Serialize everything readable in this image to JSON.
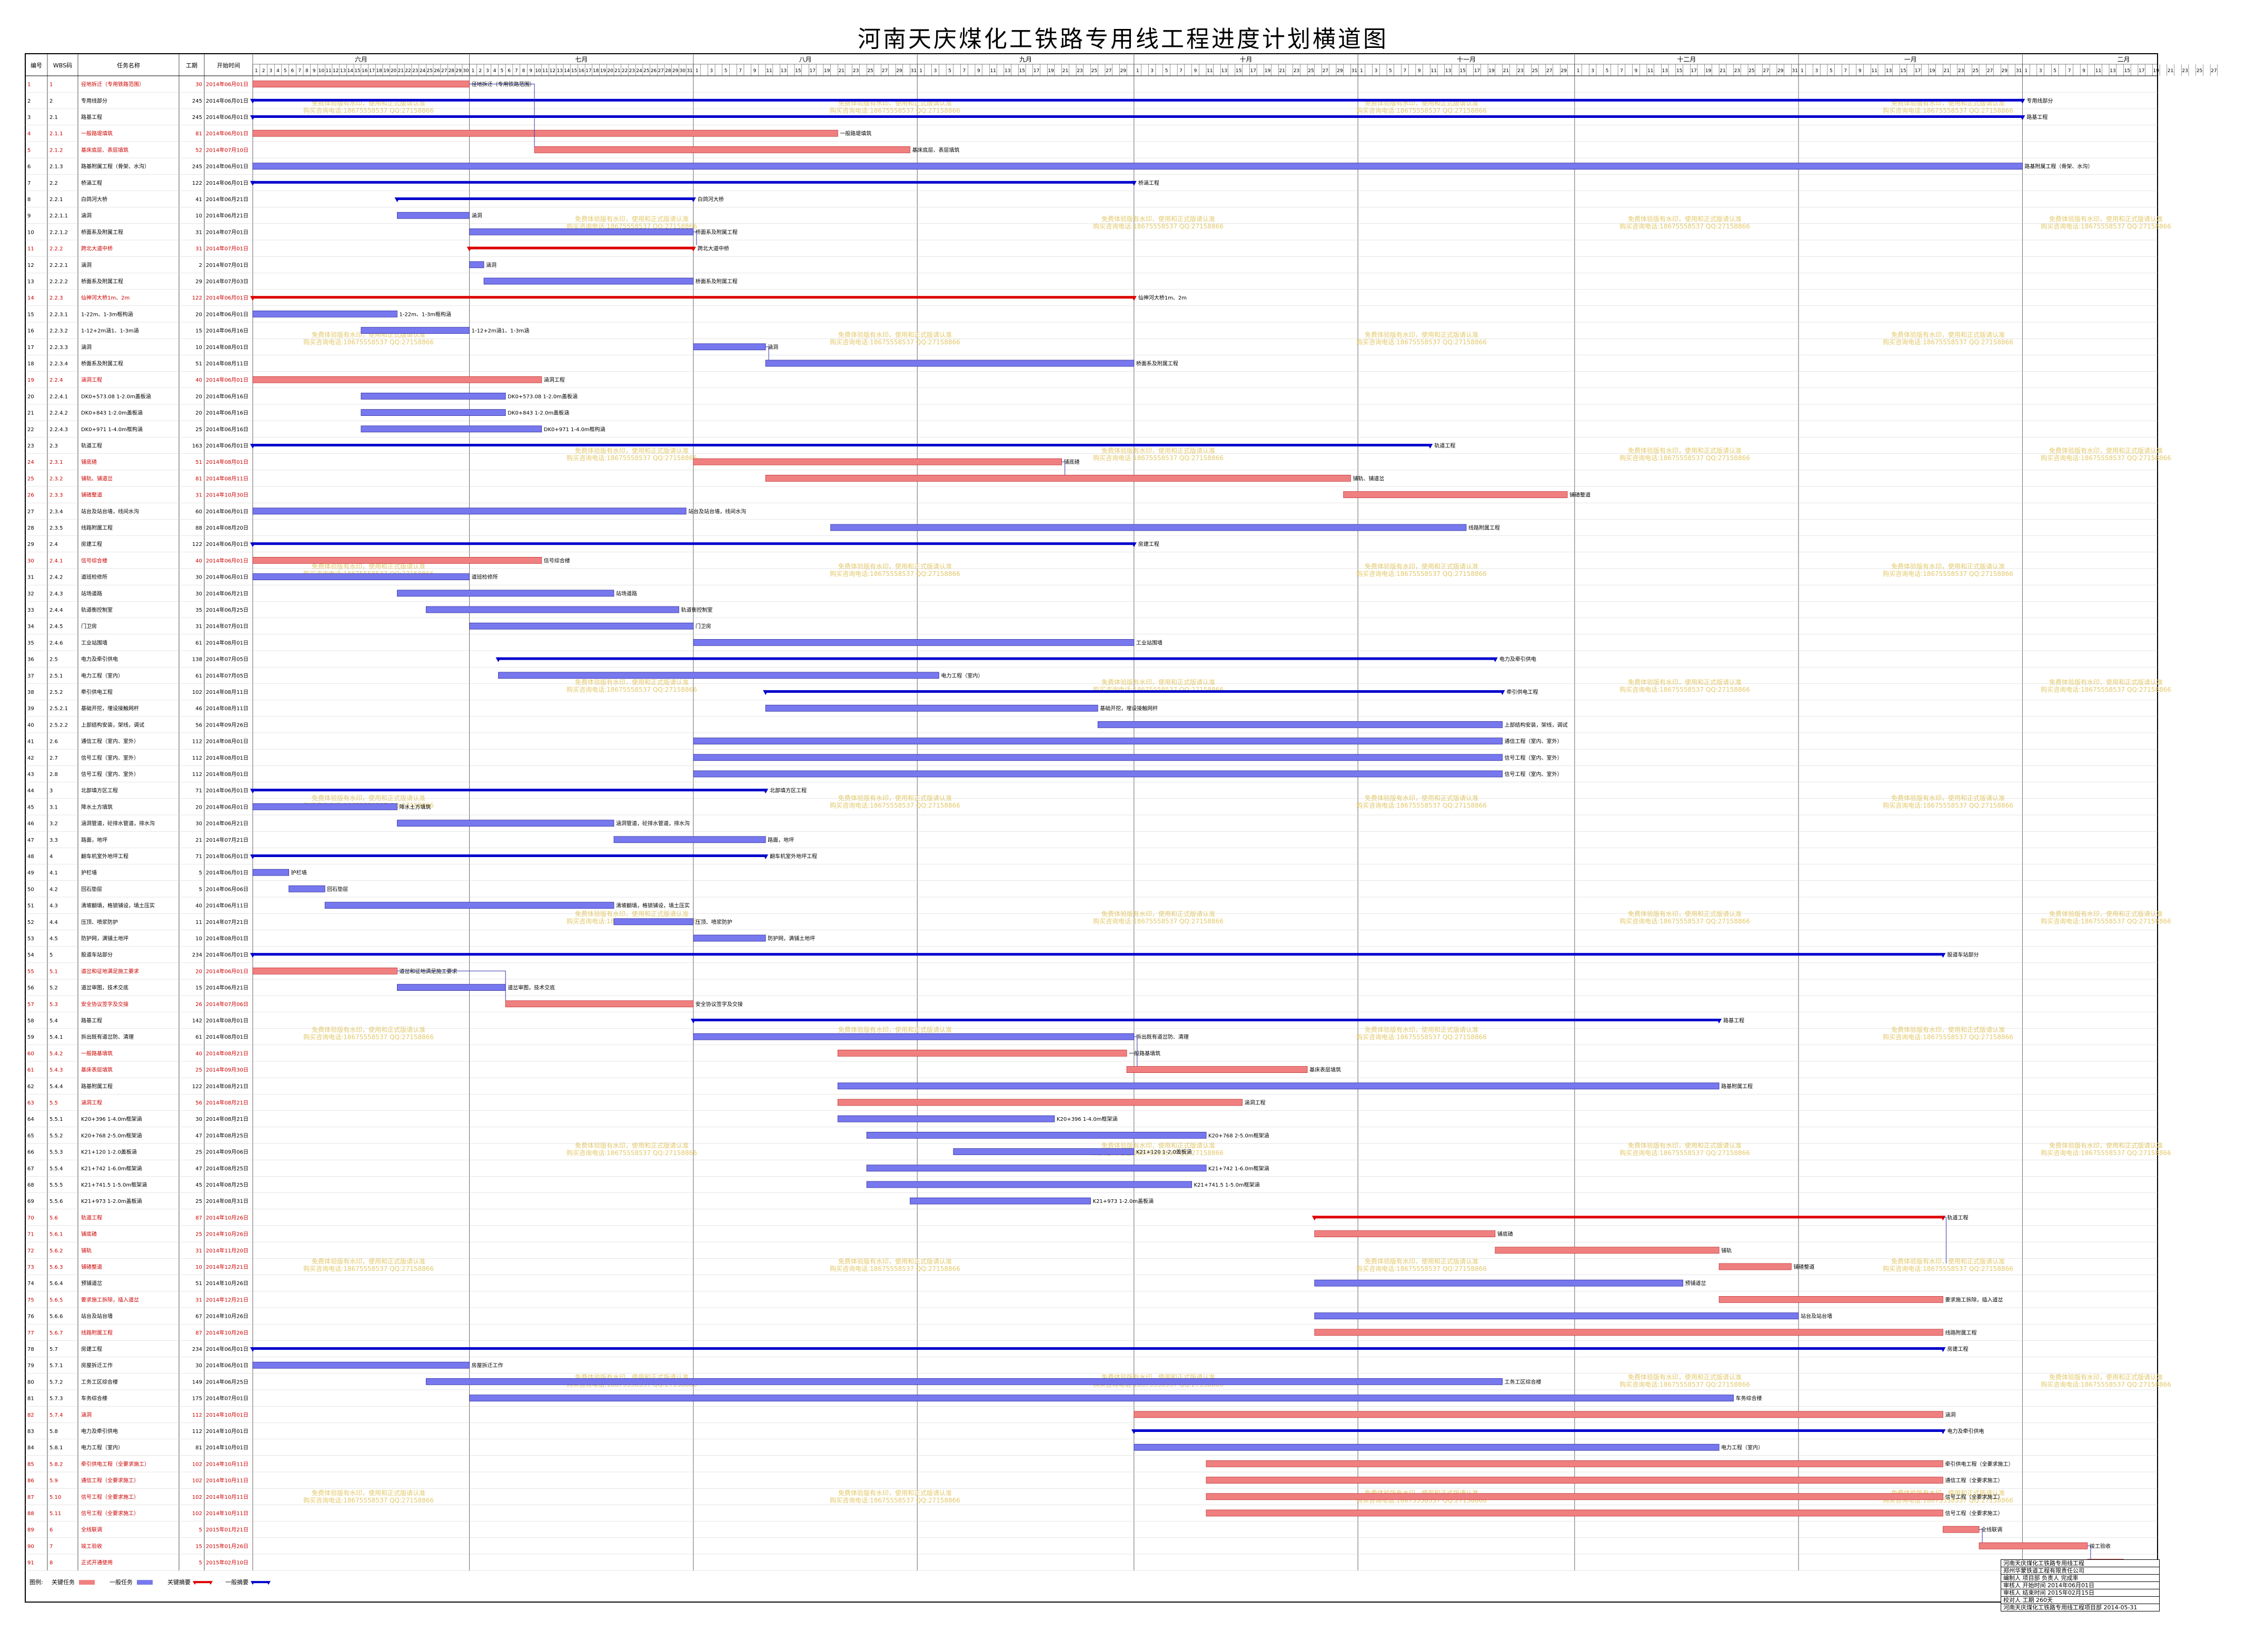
{
  "page": {
    "title": "河南天庆煤化工铁路专用线工程进度计划横道图"
  },
  "columns": [
    "编号",
    "WBS码",
    "任务名称",
    "工期",
    "开始时间"
  ],
  "months": [
    "六月",
    "七月",
    "八月",
    "九月",
    "十月",
    "十一月",
    "十二月",
    "一月",
    "二月"
  ],
  "colors": {
    "critical_bar": "#f08080",
    "normal_bar": "#7777ee",
    "critical_summary": "#dd0000",
    "normal_summary": "#0000cc",
    "milestone_link": "#3333aa",
    "watermark": "#e3c86a"
  },
  "watermark_text": [
    "免费体验版有水印，使用和正式版请认准",
    "购买咨询电话:18675558537 QQ:27158866"
  ],
  "legend": {
    "label": "图例:",
    "items": [
      {
        "label": "关键任务",
        "kind": "critical_bar"
      },
      {
        "label": "一般任务",
        "kind": "normal_bar"
      },
      {
        "label": "关键摘要",
        "kind": "critical_summary"
      },
      {
        "label": "一般摘要",
        "kind": "normal_summary"
      }
    ]
  },
  "title_block": [
    "河南天庆煤化工铁路专用线工程",
    "郑州华蒙铁道工程有限责任公司",
    "编制人  项目部  负责人  完成率",
    "审核人  开始时间  2014年06月01日",
    "审核人  结束时间  2015年02月15日",
    "校对人  工期  260天",
    "河南天庆煤化工铁路专用线工程项目部  2014-05-31"
  ],
  "chart_data": {
    "type": "gantt",
    "title": "河南天庆煤化工铁路专用线工程进度计划横道图",
    "x_axis": {
      "start": "2014-06-01",
      "end": "2015-02-28",
      "unit": "day",
      "months": [
        "六月",
        "七月",
        "八月",
        "九月",
        "十月",
        "十一月",
        "十二月",
        "一月",
        "二月"
      ]
    },
    "tasks": [
      {
        "id": "1",
        "wbs": "1",
        "name": "径地拆迁（专用铁路范围）",
        "dur": 30,
        "start": "2014年06月01日",
        "s": 0,
        "bl": "径地拆迁（专用铁路范围）",
        "k": "cb"
      },
      {
        "id": "2",
        "wbs": "2",
        "name": "专用线部分",
        "dur": 245,
        "start": "2014年06月01日",
        "s": 0,
        "bl": "专用线部分",
        "k": "ns"
      },
      {
        "id": "3",
        "wbs": "2.1",
        "name": "路基工程",
        "dur": 245,
        "start": "2014年06月01日",
        "s": 0,
        "bl": "路基工程",
        "k": "ns"
      },
      {
        "id": "4",
        "wbs": "2.1.1",
        "name": "一般路堤填筑",
        "dur": 81,
        "start": "2014年06月01日",
        "s": 0,
        "bl": "一般路堤填筑",
        "k": "cb"
      },
      {
        "id": "5",
        "wbs": "2.1.2",
        "name": "基床底层、表层填筑",
        "dur": 52,
        "start": "2014年07月10日",
        "s": 39,
        "bl": "基床底层、表层填筑",
        "k": "cb"
      },
      {
        "id": "6",
        "wbs": "2.1.3",
        "name": "路基附属工程（骨架、水沟）",
        "dur": 245,
        "start": "2014年06月01日",
        "s": 0,
        "bl": "路基附属工程（骨架、水沟）",
        "k": "nb"
      },
      {
        "id": "7",
        "wbs": "2.2",
        "name": "桥涵工程",
        "dur": 122,
        "start": "2014年06月01日",
        "s": 0,
        "bl": "桥涵工程",
        "k": "ns"
      },
      {
        "id": "8",
        "wbs": "2.2.1",
        "name": "白鸽河大桥",
        "dur": 41,
        "start": "2014年06月21日",
        "s": 20,
        "bl": "白鸽河大桥",
        "k": "ns"
      },
      {
        "id": "9",
        "wbs": "2.2.1.1",
        "name": "涵洞",
        "dur": 10,
        "start": "2014年06月21日",
        "s": 20,
        "bl": "涵洞",
        "k": "nb"
      },
      {
        "id": "10",
        "wbs": "2.2.1.2",
        "name": "桥面系及附属工程",
        "dur": 31,
        "start": "2014年07月01日",
        "s": 30,
        "bl": "桥面系及附属工程",
        "k": "nb"
      },
      {
        "id": "11",
        "wbs": "2.2.2",
        "name": "跨北大道中桥",
        "dur": 31,
        "start": "2014年07月01日",
        "s": 30,
        "bl": "跨北大道中桥",
        "k": "cs"
      },
      {
        "id": "12",
        "wbs": "2.2.2.1",
        "name": "涵洞",
        "dur": 2,
        "start": "2014年07月01日",
        "s": 30,
        "bl": "涵洞",
        "k": "nb"
      },
      {
        "id": "13",
        "wbs": "2.2.2.2",
        "name": "桥面系及附属工程",
        "dur": 29,
        "start": "2014年07月03日",
        "s": 32,
        "bl": "桥面系及附属工程",
        "k": "nb"
      },
      {
        "id": "14",
        "wbs": "2.2.3",
        "name": "仙神河大桥1m、2m",
        "dur": 122,
        "start": "2014年06月01日",
        "s": 0,
        "bl": "仙神河大桥1m、2m",
        "k": "cs"
      },
      {
        "id": "15",
        "wbs": "2.2.3.1",
        "name": "1-22m、1-3m框构涵",
        "dur": 20,
        "start": "2014年06月01日",
        "s": 0,
        "bl": "1-22m、1-3m框构涵",
        "k": "nb"
      },
      {
        "id": "16",
        "wbs": "2.2.3.2",
        "name": "1-12+2m涵1、1-3m涵",
        "dur": 15,
        "start": "2014年06月16日",
        "s": 15,
        "bl": "1-12+2m涵1、1-3m涵",
        "k": "nb"
      },
      {
        "id": "17",
        "wbs": "2.2.3.3",
        "name": "涵洞",
        "dur": 10,
        "start": "2014年08月01日",
        "s": 61,
        "bl": "涵洞",
        "k": "nb"
      },
      {
        "id": "18",
        "wbs": "2.2.3.4",
        "name": "桥面系及附属工程",
        "dur": 51,
        "start": "2014年08月11日",
        "s": 71,
        "bl": "桥面系及附属工程",
        "k": "nb"
      },
      {
        "id": "19",
        "wbs": "2.2.4",
        "name": "涵洞工程",
        "dur": 40,
        "start": "2014年06月01日",
        "s": 0,
        "bl": "涵洞工程",
        "k": "cb"
      },
      {
        "id": "20",
        "wbs": "2.2.4.1",
        "name": "DK0+573.08 1-2.0m盖板涵",
        "dur": 20,
        "start": "2014年06月16日",
        "s": 15,
        "bl": "DK0+573.08 1-2.0m盖板涵",
        "k": "nb"
      },
      {
        "id": "21",
        "wbs": "2.2.4.2",
        "name": "DK0+843 1-2.0m盖板涵",
        "dur": 20,
        "start": "2014年06月16日",
        "s": 15,
        "bl": "DK0+843 1-2.0m盖板涵",
        "k": "nb"
      },
      {
        "id": "22",
        "wbs": "2.2.4.3",
        "name": "DK0+971 1-4.0m框构涵",
        "dur": 25,
        "start": "2014年06月16日",
        "s": 15,
        "bl": "DK0+971 1-4.0m框构涵",
        "k": "nb"
      },
      {
        "id": "23",
        "wbs": "2.3",
        "name": "轨道工程",
        "dur": 163,
        "start": "2014年06月01日",
        "s": 0,
        "bl": "轨道工程",
        "k": "ns"
      },
      {
        "id": "24",
        "wbs": "2.3.1",
        "name": "铺底碴",
        "dur": 51,
        "start": "2014年08月01日",
        "s": 61,
        "bl": "铺底碴",
        "k": "cb"
      },
      {
        "id": "25",
        "wbs": "2.3.2",
        "name": "铺轨、铺道岔",
        "dur": 81,
        "start": "2014年08月11日",
        "s": 71,
        "bl": "铺轨、铺道岔",
        "k": "cb"
      },
      {
        "id": "26",
        "wbs": "2.3.3",
        "name": "铺碴整道",
        "dur": 31,
        "start": "2014年10月30日",
        "s": 151,
        "bl": "铺碴整道",
        "k": "cb"
      },
      {
        "id": "27",
        "wbs": "2.3.4",
        "name": "站台及站台墙，线间水沟",
        "dur": 60,
        "start": "2014年06月01日",
        "s": 0,
        "bl": "站台及站台墙，线间水沟",
        "k": "nb"
      },
      {
        "id": "28",
        "wbs": "2.3.5",
        "name": "线路附属工程",
        "dur": 88,
        "start": "2014年08月20日",
        "s": 80,
        "bl": "线路附属工程",
        "k": "nb"
      },
      {
        "id": "29",
        "wbs": "2.4",
        "name": "房建工程",
        "dur": 122,
        "start": "2014年06月01日",
        "s": 0,
        "bl": "房建工程",
        "k": "ns"
      },
      {
        "id": "30",
        "wbs": "2.4.1",
        "name": "信号综合楼",
        "dur": 40,
        "start": "2014年06月01日",
        "s": 0,
        "bl": "信号综合楼",
        "k": "cb"
      },
      {
        "id": "31",
        "wbs": "2.4.2",
        "name": "道班检修所",
        "dur": 30,
        "start": "2014年06月01日",
        "s": 0,
        "bl": "道班检修所",
        "k": "nb"
      },
      {
        "id": "32",
        "wbs": "2.4.3",
        "name": "站场道路",
        "dur": 30,
        "start": "2014年06月21日",
        "s": 20,
        "bl": "站场道路",
        "k": "nb"
      },
      {
        "id": "33",
        "wbs": "2.4.4",
        "name": "轨道衡控制室",
        "dur": 35,
        "start": "2014年06月25日",
        "s": 24,
        "bl": "轨道衡控制室",
        "k": "nb"
      },
      {
        "id": "34",
        "wbs": "2.4.5",
        "name": "门卫房",
        "dur": 31,
        "start": "2014年07月01日",
        "s": 30,
        "bl": "门卫房",
        "k": "nb"
      },
      {
        "id": "35",
        "wbs": "2.4.6",
        "name": "工业站围墙",
        "dur": 61,
        "start": "2014年08月01日",
        "s": 61,
        "bl": "工业站围墙",
        "k": "nb"
      },
      {
        "id": "36",
        "wbs": "2.5",
        "name": "电力及牵引供电",
        "dur": 138,
        "start": "2014年07月05日",
        "s": 34,
        "bl": "电力及牵引供电",
        "k": "ns"
      },
      {
        "id": "37",
        "wbs": "2.5.1",
        "name": "电力工程（室内）",
        "dur": 61,
        "start": "2014年07月05日",
        "s": 34,
        "bl": "电力工程（室内）",
        "k": "nb"
      },
      {
        "id": "38",
        "wbs": "2.5.2",
        "name": "牵引供电工程",
        "dur": 102,
        "start": "2014年08月11日",
        "s": 71,
        "bl": "牵引供电工程",
        "k": "ns"
      },
      {
        "id": "39",
        "wbs": "2.5.2.1",
        "name": "基础开挖，埋设接触网杆",
        "dur": 46,
        "start": "2014年08月11日",
        "s": 71,
        "bl": "基础开挖，埋设接触网杆",
        "k": "nb"
      },
      {
        "id": "40",
        "wbs": "2.5.2.2",
        "name": "上部结构安装，架线，调试",
        "dur": 56,
        "start": "2014年09月26日",
        "s": 117,
        "bl": "上部结构安装，架线，调试",
        "k": "nb"
      },
      {
        "id": "41",
        "wbs": "2.6",
        "name": "通信工程（室内、室外）",
        "dur": 112,
        "start": "2014年08月01日",
        "s": 61,
        "bl": "通信工程（室内、室外）",
        "k": "nb"
      },
      {
        "id": "42",
        "wbs": "2.7",
        "name": "信号工程（室内、室外）",
        "dur": 112,
        "start": "2014年08月01日",
        "s": 61,
        "bl": "信号工程（室内、室外）",
        "k": "nb"
      },
      {
        "id": "43",
        "wbs": "2.8",
        "name": "信号工程（室内、室外）",
        "dur": 112,
        "start": "2014年08月01日",
        "s": 61,
        "bl": "信号工程（室内、室外）",
        "k": "nb"
      },
      {
        "id": "44",
        "wbs": "3",
        "name": "北部填方区工程",
        "dur": 71,
        "start": "2014年06月01日",
        "s": 0,
        "bl": "北部填方区工程",
        "k": "ns"
      },
      {
        "id": "45",
        "wbs": "3.1",
        "name": "降水土方填筑",
        "dur": 20,
        "start": "2014年06月01日",
        "s": 0,
        "bl": "降水土方填筑",
        "k": "nb"
      },
      {
        "id": "46",
        "wbs": "3.2",
        "name": "涵洞管道，砼排水管道，排水沟",
        "dur": 30,
        "start": "2014年06月21日",
        "s": 20,
        "bl": "涵洞管道，砼排水管道，排水沟",
        "k": "nb"
      },
      {
        "id": "47",
        "wbs": "3.3",
        "name": "路面，地坪",
        "dur": 21,
        "start": "2014年07月21日",
        "s": 50,
        "bl": "路面，地坪",
        "k": "nb"
      },
      {
        "id": "48",
        "wbs": "4",
        "name": "翻车机室外地坪工程",
        "dur": 71,
        "start": "2014年06月01日",
        "s": 0,
        "bl": "翻车机室外地坪工程",
        "k": "ns"
      },
      {
        "id": "49",
        "wbs": "4.1",
        "name": "护栏墙",
        "dur": 5,
        "start": "2014年06月01日",
        "s": 0,
        "bl": "护栏墙",
        "k": "nb"
      },
      {
        "id": "50",
        "wbs": "4.2",
        "name": "回石垫层",
        "dur": 5,
        "start": "2014年06月06日",
        "s": 5,
        "bl": "回石垫层",
        "k": "nb"
      },
      {
        "id": "51",
        "wbs": "4.3",
        "name": "清坡翻填，格锁铺设，填土压实",
        "dur": 40,
        "start": "2014年06月11日",
        "s": 10,
        "bl": "清坡翻填，格锁铺设，填土压实",
        "k": "nb"
      },
      {
        "id": "52",
        "wbs": "4.4",
        "name": "压顶、喷浆防护",
        "dur": 11,
        "start": "2014年07月21日",
        "s": 50,
        "bl": "压顶、喷浆防护",
        "k": "nb"
      },
      {
        "id": "53",
        "wbs": "4.5",
        "name": "防护网，满铺土地坪",
        "dur": 10,
        "start": "2014年08月01日",
        "s": 61,
        "bl": "防护网，满铺土地坪",
        "k": "nb"
      },
      {
        "id": "54",
        "wbs": "5",
        "name": "股道车站部分",
        "dur": 234,
        "start": "2014年06月01日",
        "s": 0,
        "bl": "股道车站部分",
        "k": "ns"
      },
      {
        "id": "55",
        "wbs": "5.1",
        "name": "道岔和征地满足施工要求",
        "dur": 20,
        "start": "2014年06月01日",
        "s": 0,
        "bl": "道岔和征地满足施工要求",
        "k": "cb"
      },
      {
        "id": "56",
        "wbs": "5.2",
        "name": "道岔审图，技术交底",
        "dur": 15,
        "start": "2014年06月21日",
        "s": 20,
        "bl": "道岔审图，技术交底",
        "k": "nb"
      },
      {
        "id": "57",
        "wbs": "5.3",
        "name": "安全协议签字及交接",
        "dur": 26,
        "start": "2014年07月06日",
        "s": 35,
        "bl": "安全协议签字及交接",
        "k": "cb"
      },
      {
        "id": "58",
        "wbs": "5.4",
        "name": "路基工程",
        "dur": 142,
        "start": "2014年08月01日",
        "s": 61,
        "bl": "路基工程",
        "k": "ns"
      },
      {
        "id": "59",
        "wbs": "5.4.1",
        "name": "拆出既有道岔防、清理",
        "dur": 61,
        "start": "2014年08月01日",
        "s": 61,
        "bl": "拆出既有道岔防、清理",
        "k": "nb"
      },
      {
        "id": "60",
        "wbs": "5.4.2",
        "name": "一般路基填筑",
        "dur": 40,
        "start": "2014年08月21日",
        "s": 81,
        "bl": "一般路基填筑",
        "k": "cb"
      },
      {
        "id": "61",
        "wbs": "5.4.3",
        "name": "基床表层填筑",
        "dur": 25,
        "start": "2014年09月30日",
        "s": 121,
        "bl": "基床表层填筑",
        "k": "cb"
      },
      {
        "id": "62",
        "wbs": "5.4.4",
        "name": "路基附属工程",
        "dur": 122,
        "start": "2014年08月21日",
        "s": 81,
        "bl": "路基附属工程",
        "k": "nb"
      },
      {
        "id": "63",
        "wbs": "5.5",
        "name": "涵洞工程",
        "dur": 56,
        "start": "2014年08月21日",
        "s": 81,
        "bl": "涵洞工程",
        "k": "cb"
      },
      {
        "id": "64",
        "wbs": "5.5.1",
        "name": "K20+396 1-4.0m框架涵",
        "dur": 30,
        "start": "2014年08月21日",
        "s": 81,
        "bl": "K20+396 1-4.0m框架涵",
        "k": "nb"
      },
      {
        "id": "65",
        "wbs": "5.5.2",
        "name": "K20+768 2-5.0m框架涵",
        "dur": 47,
        "start": "2014年08月25日",
        "s": 85,
        "bl": "K20+768 2-5.0m框架涵",
        "k": "nb"
      },
      {
        "id": "66",
        "wbs": "5.5.3",
        "name": "K21+120 1-2.0盖板涵",
        "dur": 25,
        "start": "2014年09月06日",
        "s": 97,
        "bl": "K21+120 1-2.0盖板涵",
        "k": "nb"
      },
      {
        "id": "67",
        "wbs": "5.5.4",
        "name": "K21+742 1-6.0m框架涵",
        "dur": 47,
        "start": "2014年08月25日",
        "s": 85,
        "bl": "K21+742 1-6.0m框架涵",
        "k": "nb"
      },
      {
        "id": "68",
        "wbs": "5.5.5",
        "name": "K21+741.5 1-5.0m框架涵",
        "dur": 45,
        "start": "2014年08月25日",
        "s": 85,
        "bl": "K21+741.5 1-5.0m框架涵",
        "k": "nb"
      },
      {
        "id": "69",
        "wbs": "5.5.6",
        "name": "K21+973 1-2.0m盖板涵",
        "dur": 25,
        "start": "2014年08月31日",
        "s": 91,
        "bl": "K21+973 1-2.0m盖板涵",
        "k": "nb"
      },
      {
        "id": "70",
        "wbs": "5.6",
        "name": "轨道工程",
        "dur": 87,
        "start": "2014年10月26日",
        "s": 147,
        "bl": "轨道工程",
        "k": "cs"
      },
      {
        "id": "71",
        "wbs": "5.6.1",
        "name": "铺底碴",
        "dur": 25,
        "start": "2014年10月26日",
        "s": 147,
        "bl": "铺底碴",
        "k": "cb"
      },
      {
        "id": "72",
        "wbs": "5.6.2",
        "name": "铺轨",
        "dur": 31,
        "start": "2014年11月20日",
        "s": 172,
        "bl": "铺轨",
        "k": "cb"
      },
      {
        "id": "73",
        "wbs": "5.6.3",
        "name": "铺碴整道",
        "dur": 10,
        "start": "2014年12月21日",
        "s": 203,
        "bl": "铺碴整道",
        "k": "cb"
      },
      {
        "id": "74",
        "wbs": "5.6.4",
        "name": "预铺道岔",
        "dur": 51,
        "start": "2014年10月26日",
        "s": 147,
        "bl": "预铺道岔",
        "k": "nb"
      },
      {
        "id": "75",
        "wbs": "5.6.5",
        "name": "要求施工拆除，插入道岔",
        "dur": 31,
        "start": "2014年12月21日",
        "s": 203,
        "bl": "要求施工拆除，插入道岔",
        "k": "cb"
      },
      {
        "id": "76",
        "wbs": "5.6.6",
        "name": "站台及站台墙",
        "dur": 67,
        "start": "2014年10月26日",
        "s": 147,
        "bl": "站台及站台墙",
        "k": "nb"
      },
      {
        "id": "77",
        "wbs": "5.6.7",
        "name": "线路附属工程",
        "dur": 87,
        "start": "2014年10月26日",
        "s": 147,
        "bl": "线路附属工程",
        "k": "cb"
      },
      {
        "id": "78",
        "wbs": "5.7",
        "name": "房建工程",
        "dur": 234,
        "start": "2014年06月01日",
        "s": 0,
        "bl": "房建工程",
        "k": "ns"
      },
      {
        "id": "79",
        "wbs": "5.7.1",
        "name": "房屋拆迁工作",
        "dur": 30,
        "start": "2014年06月01日",
        "s": 0,
        "bl": "房屋拆迁工作",
        "k": "nb"
      },
      {
        "id": "80",
        "wbs": "5.7.2",
        "name": "工务工区综合楼",
        "dur": 149,
        "start": "2014年06月25日",
        "s": 24,
        "bl": "工务工区综合楼",
        "k": "nb"
      },
      {
        "id": "81",
        "wbs": "5.7.3",
        "name": "车务综合楼",
        "dur": 175,
        "start": "2014年07月01日",
        "s": 30,
        "bl": "车务综合楼",
        "k": "nb"
      },
      {
        "id": "82",
        "wbs": "5.7.4",
        "name": "涵洞",
        "dur": 112,
        "start": "2014年10月01日",
        "s": 122,
        "bl": "涵洞",
        "k": "cb"
      },
      {
        "id": "83",
        "wbs": "5.8",
        "name": "电力及牵引供电",
        "dur": 112,
        "start": "2014年10月01日",
        "s": 122,
        "bl": "电力及牵引供电",
        "k": "ns"
      },
      {
        "id": "84",
        "wbs": "5.8.1",
        "name": "电力工程（室内）",
        "dur": 81,
        "start": "2014年10月01日",
        "s": 122,
        "bl": "电力工程（室内）",
        "k": "nb"
      },
      {
        "id": "85",
        "wbs": "5.8.2",
        "name": "牵引供电工程（全要求施工）",
        "dur": 102,
        "start": "2014年10月11日",
        "s": 132,
        "bl": "牵引供电工程（全要求施工）",
        "k": "cb"
      },
      {
        "id": "86",
        "wbs": "5.9",
        "name": "通信工程（全要求施工）",
        "dur": 102,
        "start": "2014年10月11日",
        "s": 132,
        "bl": "通信工程（全要求施工）",
        "k": "cb"
      },
      {
        "id": "87",
        "wbs": "5.10",
        "name": "信号工程（全要求施工）",
        "dur": 102,
        "start": "2014年10月11日",
        "s": 132,
        "bl": "信号工程（全要求施工）",
        "k": "cb"
      },
      {
        "id": "88",
        "wbs": "5.11",
        "name": "信号工程（全要求施工）",
        "dur": 102,
        "start": "2014年10月11日",
        "s": 132,
        "bl": "信号工程（全要求施工）",
        "k": "cb"
      },
      {
        "id": "89",
        "wbs": "6",
        "name": "全线联调",
        "dur": 5,
        "start": "2015年01月21日",
        "s": 234,
        "bl": "全线联调",
        "k": "cb"
      },
      {
        "id": "90",
        "wbs": "7",
        "name": "竣工验收",
        "dur": 15,
        "start": "2015年01月26日",
        "s": 239,
        "bl": "竣工验收",
        "k": "cb"
      },
      {
        "id": "91",
        "wbs": "8",
        "name": "正式开通使用",
        "dur": 5,
        "start": "2015年02月10日",
        "s": 254,
        "bl": "正式开通使用",
        "k": "cb"
      }
    ]
  }
}
